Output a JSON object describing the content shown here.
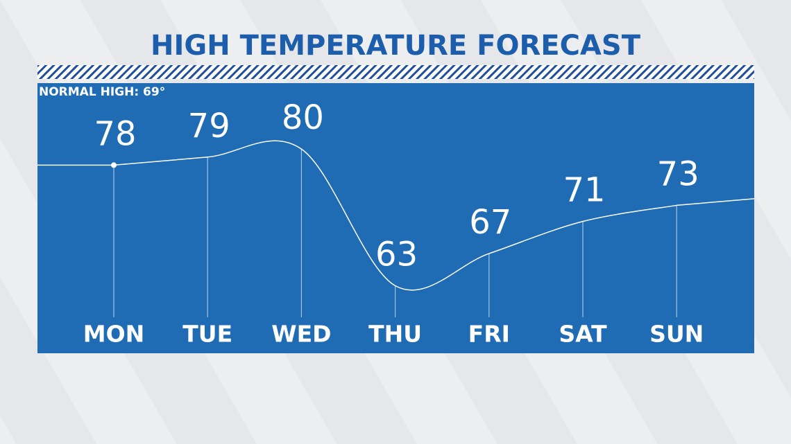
{
  "chart_data": {
    "type": "line",
    "title": "HIGH TEMPERATURE FORECAST",
    "annotation": "NORMAL HIGH: 69°",
    "categories": [
      "MON",
      "TUE",
      "WED",
      "THU",
      "FRI",
      "SAT",
      "SUN"
    ],
    "values": [
      78,
      79,
      80,
      63,
      67,
      71,
      73
    ],
    "color": "#ffffff",
    "panel_color": "#1f6cb4",
    "ylim": [
      54.6,
      88.2
    ]
  }
}
